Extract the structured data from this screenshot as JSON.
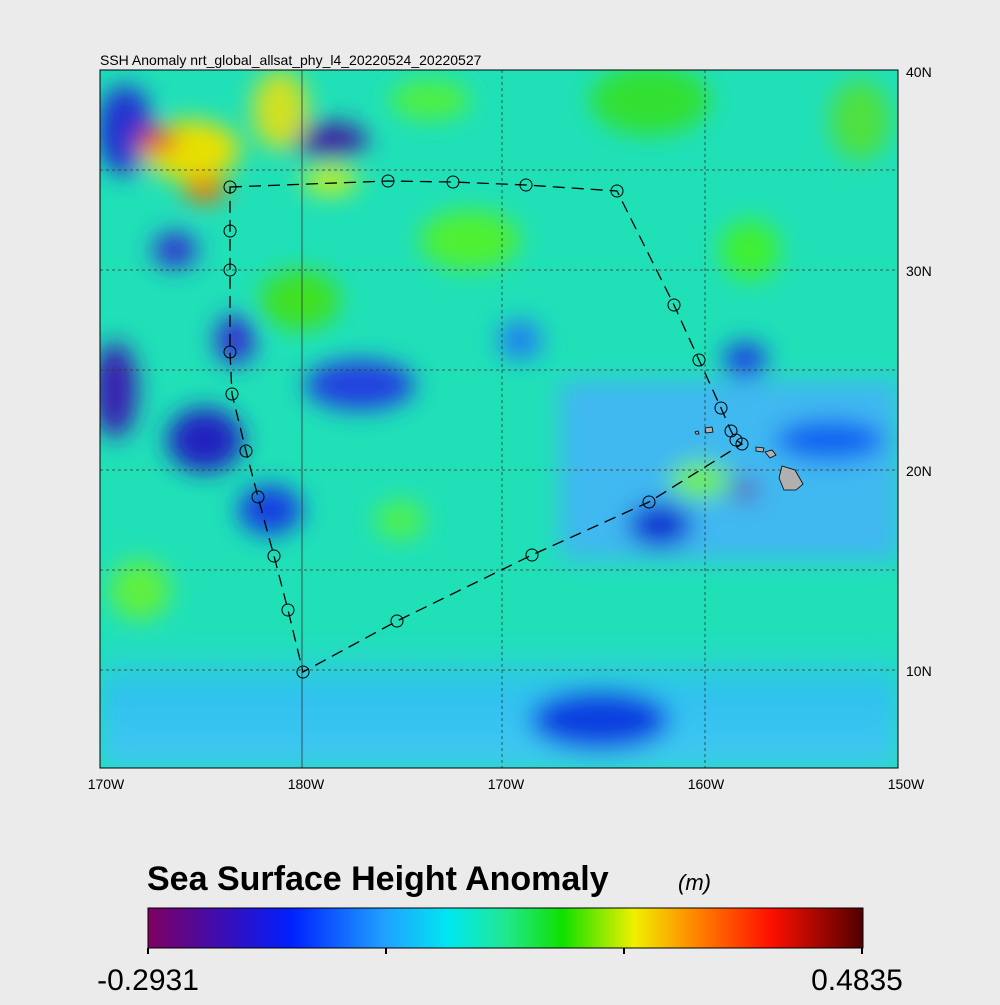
{
  "map": {
    "title": "SSH Anomaly nrt_global_allsat_phy_l4_20220524_20220527",
    "lon_labels": [
      "170W",
      "180W",
      "170W",
      "160W",
      "150W"
    ],
    "lat_labels": [
      "40N",
      "30N",
      "20N",
      "10N"
    ]
  },
  "colorbar": {
    "title": "Sea Surface Height Anomaly",
    "units": "(m)",
    "min": -0.2931,
    "max": 0.4835
  }
}
